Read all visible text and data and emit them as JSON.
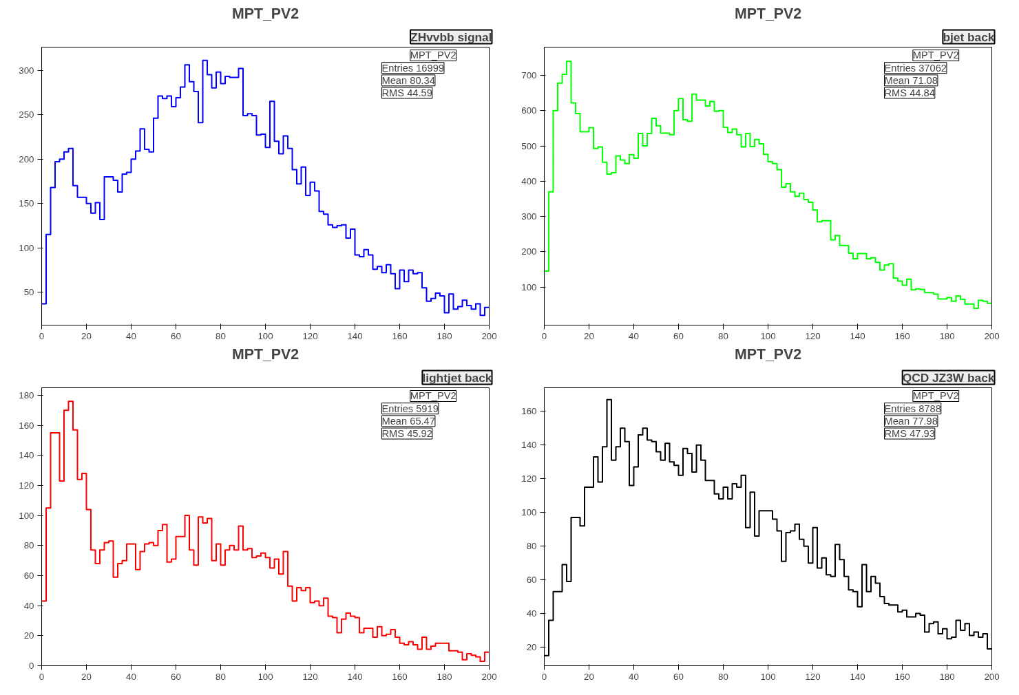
{
  "chart_data": [
    {
      "type": "histogram",
      "title": "MPT_PV2",
      "subtitle": "ZHvvbb signal",
      "annotations": [
        "MPT_PV2",
        "Entries 16999",
        "Mean 80.34",
        "RMS 44.59"
      ],
      "color": "#0000ff",
      "xlim": [
        0,
        200
      ],
      "ylim": [
        13,
        326
      ],
      "xticks": [
        0,
        20,
        40,
        60,
        80,
        100,
        120,
        140,
        160,
        180,
        200
      ],
      "yticks": [
        50,
        100,
        150,
        200,
        250,
        300
      ],
      "bins": [
        0,
        2,
        4,
        6,
        8,
        10,
        12,
        14,
        16,
        18,
        20,
        22,
        24,
        26,
        28,
        30,
        32,
        34,
        36,
        38,
        40,
        42,
        44,
        46,
        48,
        50,
        52,
        54,
        56,
        58,
        60,
        62,
        64,
        66,
        68,
        70,
        72,
        74,
        76,
        78,
        80,
        82,
        84,
        86,
        88,
        90,
        92,
        94,
        96,
        98,
        100,
        102,
        104,
        106,
        108,
        110,
        112,
        114,
        116,
        118,
        120,
        122,
        124,
        126,
        128,
        130,
        132,
        134,
        136,
        138,
        140,
        142,
        144,
        146,
        148,
        150,
        152,
        154,
        156,
        158,
        160,
        162,
        164,
        166,
        168,
        170,
        172,
        174,
        176,
        178,
        180,
        182,
        184,
        186,
        188,
        190,
        192,
        194,
        196,
        198,
        200
      ],
      "values": [
        37,
        115,
        168,
        197,
        200,
        208,
        212,
        170,
        157,
        157,
        150,
        139,
        151,
        132,
        180,
        180,
        176,
        163,
        183,
        185,
        200,
        209,
        234,
        211,
        208,
        246,
        271,
        268,
        271,
        259,
        269,
        281,
        306,
        287,
        276,
        241,
        311,
        295,
        280,
        298,
        285,
        293,
        292,
        292,
        302,
        249,
        251,
        249,
        227,
        228,
        213,
        265,
        220,
        206,
        226,
        212,
        188,
        172,
        191,
        159,
        174,
        164,
        141,
        138,
        126,
        123,
        125,
        126,
        111,
        121,
        92,
        90,
        98,
        92,
        76,
        79,
        72,
        81,
        71,
        54,
        75,
        62,
        75,
        71,
        72,
        55,
        40,
        43,
        49,
        46,
        27,
        48,
        31,
        34,
        41,
        35,
        31,
        37,
        24,
        33
      ]
    },
    {
      "type": "histogram",
      "title": "MPT_PV2",
      "subtitle": "bjet back",
      "annotations": [
        "MPT_PV2",
        "Entries 37062",
        "Mean 71.08",
        "RMS 44.84"
      ],
      "color": "#00ff00",
      "xlim": [
        0,
        200
      ],
      "ylim": [
        -8,
        780
      ],
      "xticks": [
        0,
        20,
        40,
        60,
        80,
        100,
        120,
        140,
        160,
        180,
        200
      ],
      "yticks": [
        100,
        200,
        300,
        400,
        500,
        600,
        700
      ],
      "bins": [
        0,
        2,
        4,
        6,
        8,
        10,
        12,
        14,
        16,
        18,
        20,
        22,
        24,
        26,
        28,
        30,
        32,
        34,
        36,
        38,
        40,
        42,
        44,
        46,
        48,
        50,
        52,
        54,
        56,
        58,
        60,
        62,
        64,
        66,
        68,
        70,
        72,
        74,
        76,
        78,
        80,
        82,
        84,
        86,
        88,
        90,
        92,
        94,
        96,
        98,
        100,
        102,
        104,
        106,
        108,
        110,
        112,
        114,
        116,
        118,
        120,
        122,
        124,
        126,
        128,
        130,
        132,
        134,
        136,
        138,
        140,
        142,
        144,
        146,
        148,
        150,
        152,
        154,
        156,
        158,
        160,
        162,
        164,
        166,
        168,
        170,
        172,
        174,
        176,
        178,
        180,
        182,
        184,
        186,
        188,
        190,
        192,
        194,
        196,
        198,
        200
      ],
      "values": [
        145,
        370,
        600,
        678,
        703,
        740,
        622,
        592,
        540,
        540,
        552,
        493,
        497,
        454,
        420,
        424,
        472,
        460,
        450,
        475,
        465,
        535,
        500,
        535,
        578,
        557,
        536,
        536,
        532,
        600,
        634,
        574,
        570,
        647,
        630,
        630,
        613,
        626,
        598,
        600,
        553,
        538,
        548,
        532,
        497,
        535,
        498,
        518,
        506,
        476,
        455,
        450,
        433,
        383,
        393,
        370,
        357,
        366,
        348,
        340,
        318,
        285,
        288,
        288,
        234,
        246,
        218,
        218,
        196,
        180,
        195,
        195,
        180,
        183,
        170,
        148,
        162,
        166,
        125,
        117,
        105,
        122,
        92,
        95,
        93,
        84,
        84,
        80,
        66,
        66,
        70,
        60,
        75,
        65,
        52,
        52,
        40,
        62,
        60,
        54
      ]
    },
    {
      "type": "histogram",
      "title": "MPT_PV2",
      "subtitle": "lightjet back",
      "annotations": [
        "MPT_PV2",
        "Entries 5919",
        "Mean 65.47",
        "RMS 45.92"
      ],
      "color": "#ff0000",
      "xlim": [
        0,
        200
      ],
      "ylim": [
        0,
        185
      ],
      "xticks": [
        0,
        20,
        40,
        60,
        80,
        100,
        120,
        140,
        160,
        180,
        200
      ],
      "yticks": [
        0,
        20,
        40,
        60,
        80,
        100,
        120,
        140,
        160,
        180
      ],
      "bins": [
        0,
        2,
        4,
        6,
        8,
        10,
        12,
        14,
        16,
        18,
        20,
        22,
        24,
        26,
        28,
        30,
        32,
        34,
        36,
        38,
        40,
        42,
        44,
        46,
        48,
        50,
        52,
        54,
        56,
        58,
        60,
        62,
        64,
        66,
        68,
        70,
        72,
        74,
        76,
        78,
        80,
        82,
        84,
        86,
        88,
        90,
        92,
        94,
        96,
        98,
        100,
        102,
        104,
        106,
        108,
        110,
        112,
        114,
        116,
        118,
        120,
        122,
        124,
        126,
        128,
        130,
        132,
        134,
        136,
        138,
        140,
        142,
        144,
        146,
        148,
        150,
        152,
        154,
        156,
        158,
        160,
        162,
        164,
        166,
        168,
        170,
        172,
        174,
        176,
        178,
        180,
        182,
        184,
        186,
        188,
        190,
        192,
        194,
        196,
        198,
        200
      ],
      "values": [
        43,
        105,
        155,
        155,
        123,
        170,
        176,
        157,
        124,
        128,
        104,
        77,
        68,
        77,
        82,
        83,
        59,
        68,
        70,
        81,
        81,
        64,
        76,
        81,
        82,
        80,
        90,
        94,
        69,
        71,
        86,
        86,
        100,
        77,
        67,
        99,
        95,
        98,
        70,
        81,
        67,
        77,
        80,
        77,
        93,
        77,
        78,
        72,
        73,
        75,
        72,
        65,
        71,
        61,
        76,
        53,
        43,
        52,
        50,
        52,
        42,
        43,
        40,
        45,
        33,
        32,
        22,
        31,
        35,
        33,
        32,
        22,
        25,
        25,
        19,
        26,
        20,
        21,
        24,
        19,
        15,
        14,
        16,
        14,
        11,
        19,
        11,
        13,
        15,
        15,
        15,
        10,
        10,
        9,
        4,
        8,
        7,
        6,
        3,
        9
      ]
    },
    {
      "type": "histogram",
      "title": "MPT_PV2",
      "subtitle": "QCD JZ3W back",
      "annotations": [
        "MPT_PV2",
        "Entries 8788",
        "Mean 77.98",
        "RMS 47.93"
      ],
      "color": "#000000",
      "xlim": [
        0,
        200
      ],
      "ylim": [
        9,
        174
      ],
      "xticks": [
        0,
        20,
        40,
        60,
        80,
        100,
        120,
        140,
        160,
        180,
        200
      ],
      "yticks": [
        20,
        40,
        60,
        80,
        100,
        120,
        140,
        160
      ],
      "bins": [
        0,
        2,
        4,
        6,
        8,
        10,
        12,
        14,
        16,
        18,
        20,
        22,
        24,
        26,
        28,
        30,
        32,
        34,
        36,
        38,
        40,
        42,
        44,
        46,
        48,
        50,
        52,
        54,
        56,
        58,
        60,
        62,
        64,
        66,
        68,
        70,
        72,
        74,
        76,
        78,
        80,
        82,
        84,
        86,
        88,
        90,
        92,
        94,
        96,
        98,
        100,
        102,
        104,
        106,
        108,
        110,
        112,
        114,
        116,
        118,
        120,
        122,
        124,
        126,
        128,
        130,
        132,
        134,
        136,
        138,
        140,
        142,
        144,
        146,
        148,
        150,
        152,
        154,
        156,
        158,
        160,
        162,
        164,
        166,
        168,
        170,
        172,
        174,
        176,
        178,
        180,
        182,
        184,
        186,
        188,
        190,
        192,
        194,
        196,
        198,
        200
      ],
      "values": [
        15,
        36,
        53,
        53,
        69,
        59,
        97,
        97,
        92,
        115,
        115,
        133,
        118,
        139,
        167,
        131,
        139,
        150,
        142,
        116,
        127,
        146,
        150,
        143,
        142,
        136,
        131,
        141,
        130,
        128,
        122,
        138,
        135,
        124,
        140,
        131,
        119,
        119,
        111,
        108,
        115,
        108,
        117,
        115,
        122,
        91,
        112,
        86,
        101,
        101,
        101,
        96,
        89,
        71,
        88,
        89,
        93,
        84,
        80,
        70,
        91,
        67,
        73,
        63,
        62,
        81,
        72,
        62,
        54,
        53,
        44,
        69,
        53,
        62,
        58,
        50,
        46,
        45,
        45,
        41,
        42,
        38,
        38,
        40,
        39,
        29,
        34,
        35,
        28,
        31,
        25,
        26,
        36,
        30,
        34,
        27,
        29,
        26,
        28,
        19
      ]
    }
  ]
}
